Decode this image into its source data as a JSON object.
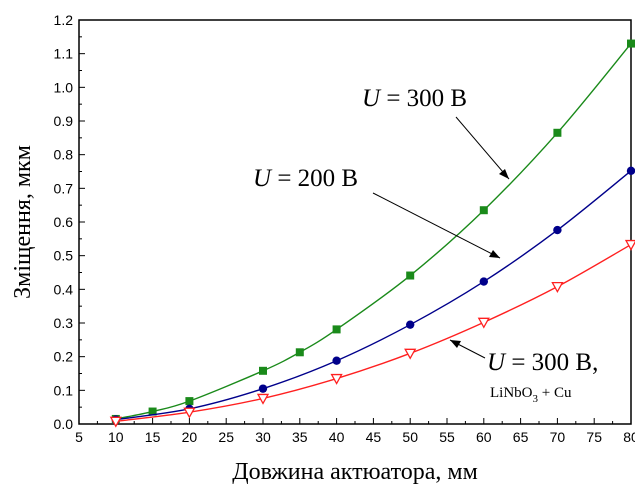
{
  "chart_data": {
    "type": "line",
    "xlabel": "Довжина актюатора, мм",
    "ylabel": "Зміщення, мкм",
    "xlim": [
      5,
      80
    ],
    "ylim": [
      0.0,
      1.2
    ],
    "xticks": [
      "5",
      "10",
      "15",
      "20",
      "25",
      "30",
      "35",
      "40",
      "45",
      "50",
      "55",
      "60",
      "65",
      "70",
      "75",
      "80"
    ],
    "yticks": [
      "0.0",
      "0.1",
      "0.2",
      "0.3",
      "0.4",
      "0.5",
      "0.6",
      "0.7",
      "0.8",
      "0.9",
      "1.0",
      "1.1",
      "1.2"
    ],
    "grid": false,
    "series": [
      {
        "color": "#1a8a1a",
        "marker": "square",
        "x": [
          10,
          15,
          20,
          30,
          35,
          40,
          50,
          60,
          70,
          80
        ],
        "y": [
          0.015,
          0.037,
          0.068,
          0.158,
          0.213,
          0.281,
          0.441,
          0.635,
          0.865,
          1.13
        ]
      },
      {
        "color": "#00008b",
        "marker": "circle",
        "x": [
          10,
          20,
          30,
          40,
          50,
          60,
          70,
          80
        ],
        "y": [
          0.013,
          0.045,
          0.105,
          0.188,
          0.295,
          0.423,
          0.576,
          0.752
        ]
      },
      {
        "color": "#ff2020",
        "marker": "triangle-down-open",
        "x": [
          10,
          20,
          30,
          40,
          50,
          60,
          70,
          80
        ],
        "y": [
          0.008,
          0.035,
          0.076,
          0.135,
          0.21,
          0.302,
          0.408,
          0.533
        ]
      }
    ],
    "annotations": [
      {
        "u": "U",
        "rest": " = 300 В"
      },
      {
        "u": "U",
        "rest": " = 200 В"
      },
      {
        "u": "U",
        "rest": " = 300 В,",
        "sub_main": "LiNbO",
        "sub_index": "3",
        "sub_tail": " + Cu"
      }
    ]
  }
}
